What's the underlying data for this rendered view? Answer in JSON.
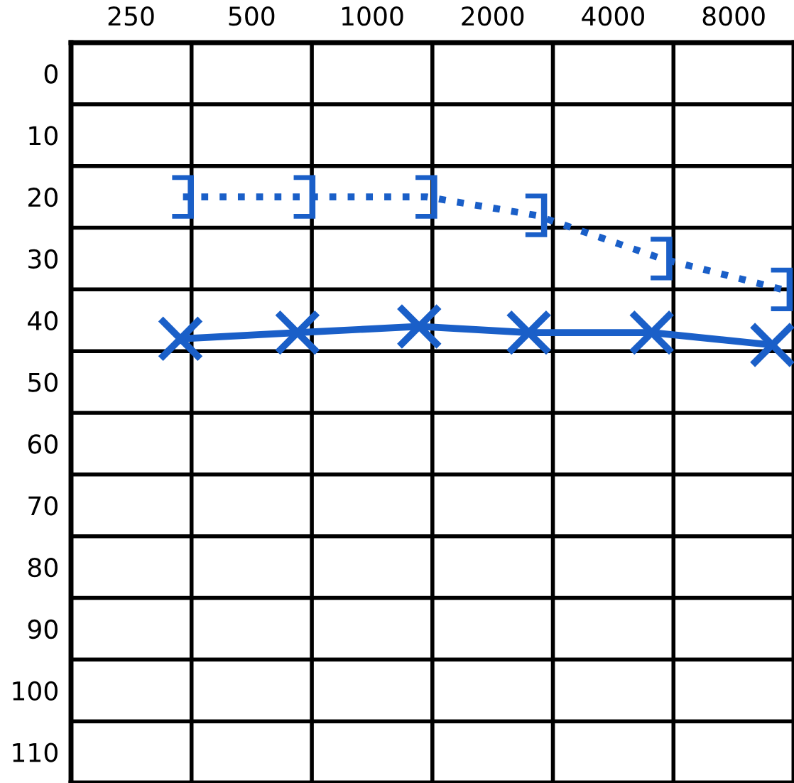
{
  "chart_data": {
    "type": "line",
    "log": "x",
    "series": [
      {
        "color": "#1a5fc8",
        "marker": "square",
        "line_style": "dotted",
        "x": [
          337,
          678,
          1366,
          2570,
          5280,
          10550
        ],
        "values": [
          20,
          20,
          20,
          23,
          30,
          35
        ]
      },
      {
        "color": "#1a5fc8",
        "marker": "cross",
        "line_style": "solid",
        "x": [
          332,
          651,
          1311,
          2462,
          4993,
          9986
        ],
        "values": [
          43,
          42,
          41,
          42,
          42,
          44
        ]
      }
    ],
    "xlim": [
      177,
      11314
    ],
    "xticks": [
      250,
      500,
      1000,
      2000,
      4000,
      8000,
      {
        "value": 354,
        "label": null
      },
      {
        "value": 707,
        "label": null
      },
      {
        "value": 1414,
        "label": null
      },
      {
        "value": 2828,
        "label": null
      },
      {
        "value": 5657,
        "label": null
      }
    ],
    "ylim": [
      115,
      -5
    ],
    "yticks": [
      0,
      10,
      20,
      30,
      40,
      50,
      60,
      70,
      80,
      90,
      100,
      110,
      {
        "value": 5,
        "label": null
      },
      {
        "value": 15,
        "label": null
      },
      {
        "value": 25,
        "label": null
      },
      {
        "value": 35,
        "label": null
      },
      {
        "value": 45,
        "label": null
      },
      {
        "value": 55,
        "label": null
      },
      {
        "value": 65,
        "label": null
      },
      {
        "value": 75,
        "label": null
      },
      {
        "value": 85,
        "label": null
      },
      {
        "value": 95,
        "label": null
      },
      {
        "value": 105,
        "label": null
      }
    ],
    "grid": true
  }
}
